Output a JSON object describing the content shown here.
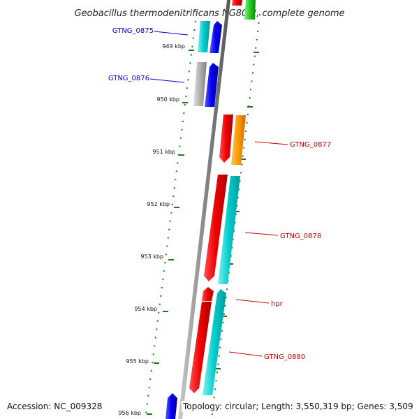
{
  "title": "Geobacillus thermodenitrificans NG80-2, complete genome",
  "accession": "Accession: NC_009328",
  "topology": "Topology: circular; Length: 3,550,319 bp; Genes: 3,509",
  "tick_labels": [
    "949 kbp",
    "950 kbp",
    "951 kbp",
    "952 kbp",
    "953 kbp",
    "954 kbp",
    "955 kbp",
    "956 kbp"
  ],
  "gene_labels": [
    {
      "text": "GTNG_0875",
      "color": "#0000cc"
    },
    {
      "text": "GTNG_0876",
      "color": "#0000cc"
    },
    {
      "text": "GTNG_0877",
      "color": "#cc0000"
    },
    {
      "text": "GTNG_0878",
      "color": "#cc0000"
    },
    {
      "text": "hpr",
      "color": "#cc0000"
    },
    {
      "text": "GTNG_0880",
      "color": "#cc0000"
    }
  ],
  "colors": {
    "backbone": "#888888",
    "ruler": "#1a7a1a",
    "forward_red": "#ee0000",
    "orange": "#ff9900",
    "cyan": "#00cccc",
    "blue": "#0000ee",
    "gray": "#aaaaaa",
    "green": "#22cc22"
  }
}
